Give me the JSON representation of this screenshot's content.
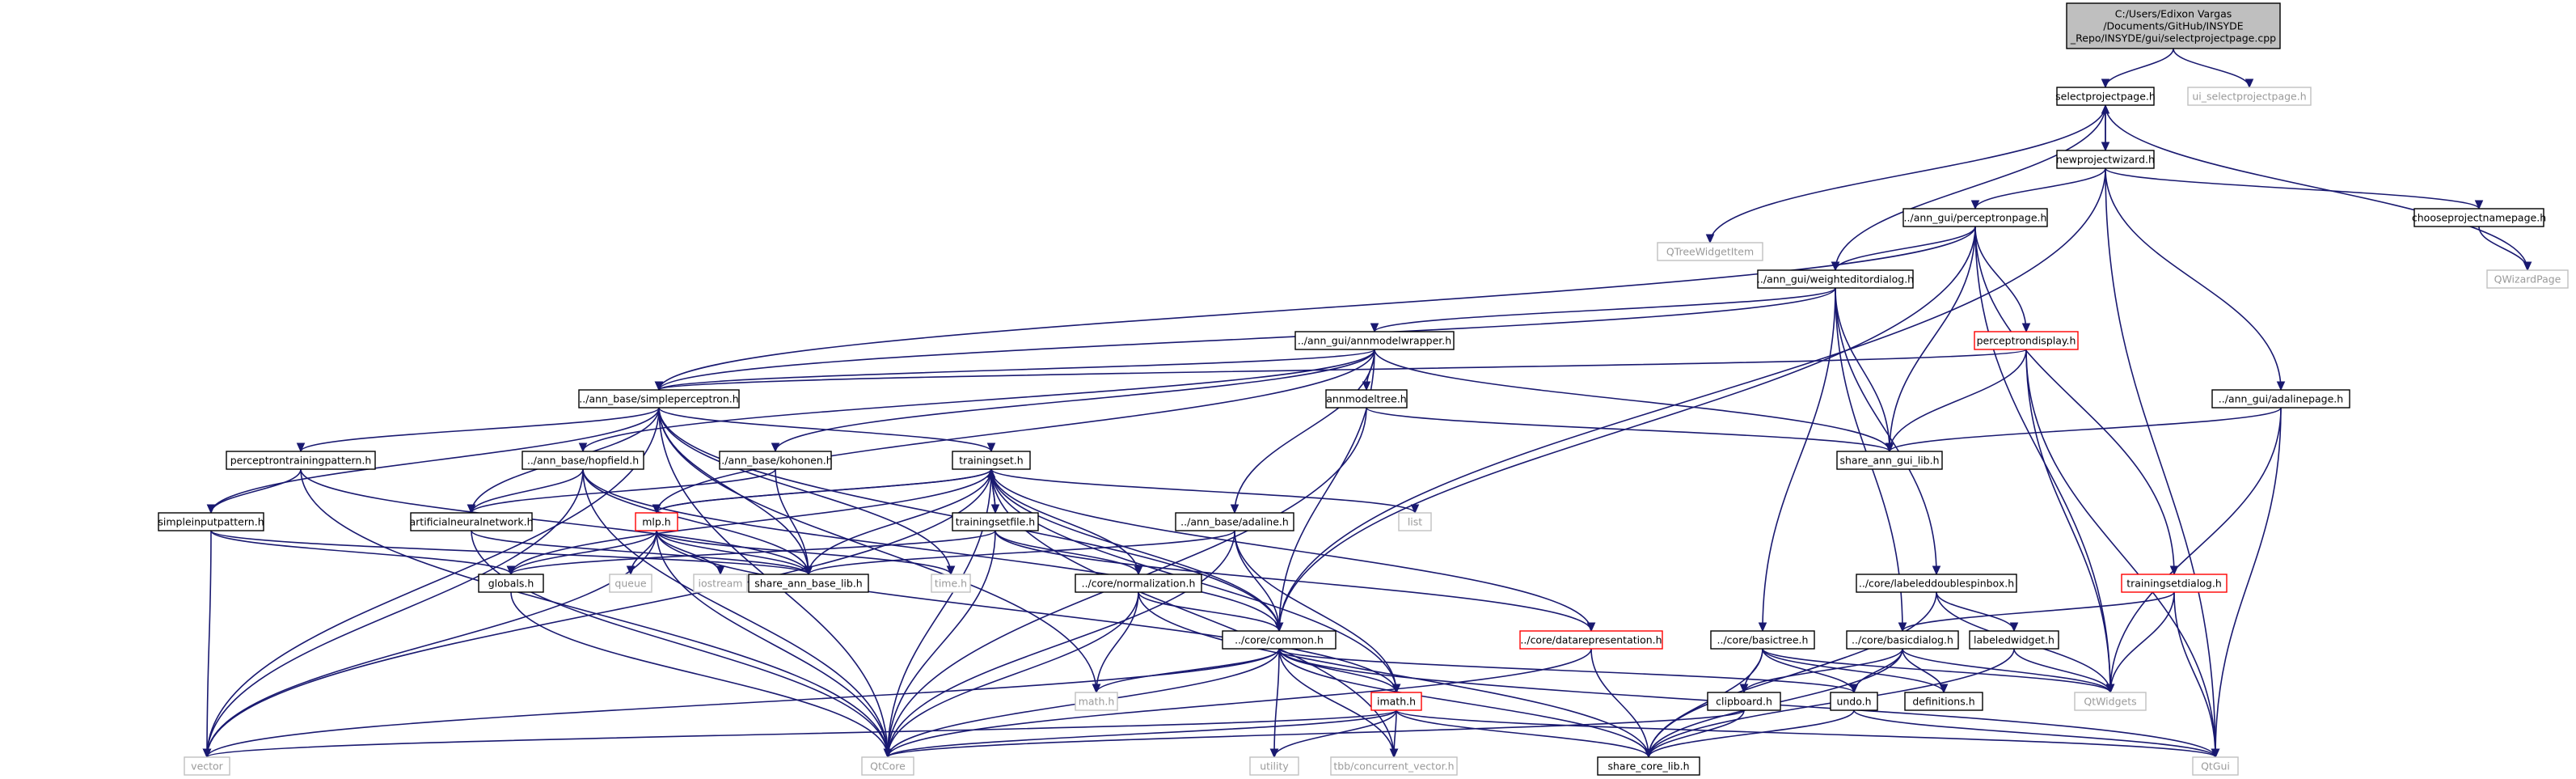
{
  "colors": {
    "edge": "#191970",
    "node_fill": "#ffffff",
    "node_border": "#000000",
    "external_border": "#c0c0c0",
    "truncated_border": "#ff0000",
    "root_fill": "#bfbfbf"
  },
  "nodes": [
    {
      "id": "root",
      "lines": [
        "C:/Users/Edixon Vargas",
        "/Documents/GitHub/INSYDE",
        "_Repo/INSYDE/gui/selectprojectpage.cpp"
      ],
      "kind": "root"
    },
    {
      "id": "selectprojectpage",
      "lines": [
        "selectprojectpage.h"
      ],
      "kind": "local"
    },
    {
      "id": "ui_selectprojectpage",
      "lines": [
        "ui_selectprojectpage.h"
      ],
      "kind": "external"
    },
    {
      "id": "newprojectwizard",
      "lines": [
        "newprojectwizard.h"
      ],
      "kind": "local"
    },
    {
      "id": "qtreewidgetitem",
      "lines": [
        "QTreeWidgetItem"
      ],
      "kind": "external"
    },
    {
      "id": "perceptronpage",
      "lines": [
        "../ann_gui/perceptronpage.h"
      ],
      "kind": "local"
    },
    {
      "id": "chooseprojectnamepage",
      "lines": [
        "chooseprojectnamepage.h"
      ],
      "kind": "local"
    },
    {
      "id": "qwizardpage",
      "lines": [
        "QWizardPage"
      ],
      "kind": "external"
    },
    {
      "id": "weighteditordialog",
      "lines": [
        "../ann_gui/weighteditordialog.h"
      ],
      "kind": "local"
    },
    {
      "id": "annmodelwrapper",
      "lines": [
        "../ann_gui/annmodelwrapper.h"
      ],
      "kind": "local"
    },
    {
      "id": "perceptrondisplay",
      "lines": [
        "perceptrondisplay.h"
      ],
      "kind": "truncated"
    },
    {
      "id": "simpleperceptron",
      "lines": [
        "../ann_base/simpleperceptron.h"
      ],
      "kind": "local"
    },
    {
      "id": "annmodeltree",
      "lines": [
        "annmodeltree.h"
      ],
      "kind": "local"
    },
    {
      "id": "adalinepage",
      "lines": [
        "../ann_gui/adalinepage.h"
      ],
      "kind": "local"
    },
    {
      "id": "perceptrontrainingpattern",
      "lines": [
        "perceptrontrainingpattern.h"
      ],
      "kind": "local"
    },
    {
      "id": "hopfield",
      "lines": [
        "../ann_base/hopfield.h"
      ],
      "kind": "local"
    },
    {
      "id": "kohonen",
      "lines": [
        "../ann_base/kohonen.h"
      ],
      "kind": "local"
    },
    {
      "id": "trainingset",
      "lines": [
        "trainingset.h"
      ],
      "kind": "local"
    },
    {
      "id": "share_ann_gui_lib",
      "lines": [
        "share_ann_gui_lib.h"
      ],
      "kind": "local"
    },
    {
      "id": "simpleinputpattern",
      "lines": [
        "simpleinputpattern.h"
      ],
      "kind": "local"
    },
    {
      "id": "artificialneuralnetwork",
      "lines": [
        "artificialneuralnetwork.h"
      ],
      "kind": "local"
    },
    {
      "id": "mlp",
      "lines": [
        "mlp.h"
      ],
      "kind": "truncated"
    },
    {
      "id": "trainingsetfile",
      "lines": [
        "trainingsetfile.h"
      ],
      "kind": "local"
    },
    {
      "id": "adaline",
      "lines": [
        "../ann_base/adaline.h"
      ],
      "kind": "local"
    },
    {
      "id": "list",
      "lines": [
        "list"
      ],
      "kind": "external"
    },
    {
      "id": "labeleddoublespinbox",
      "lines": [
        "../core/labeleddoublespinbox.h"
      ],
      "kind": "local"
    },
    {
      "id": "trainingsetdialog",
      "lines": [
        "trainingsetdialog.h"
      ],
      "kind": "truncated"
    },
    {
      "id": "globals",
      "lines": [
        "globals.h"
      ],
      "kind": "local"
    },
    {
      "id": "queue",
      "lines": [
        "queue"
      ],
      "kind": "external"
    },
    {
      "id": "iostream",
      "lines": [
        "iostream"
      ],
      "kind": "external"
    },
    {
      "id": "share_ann_base_lib",
      "lines": [
        "share_ann_base_lib.h"
      ],
      "kind": "local"
    },
    {
      "id": "time",
      "lines": [
        "time.h"
      ],
      "kind": "external"
    },
    {
      "id": "normalization",
      "lines": [
        "../core/normalization.h"
      ],
      "kind": "local"
    },
    {
      "id": "datarepresentation",
      "lines": [
        "../core/datarepresentation.h"
      ],
      "kind": "truncated"
    },
    {
      "id": "basictree",
      "lines": [
        "../core/basictree.h"
      ],
      "kind": "local"
    },
    {
      "id": "basicdialog",
      "lines": [
        "../core/basicdialog.h"
      ],
      "kind": "local"
    },
    {
      "id": "labeledwidget",
      "lines": [
        "labeledwidget.h"
      ],
      "kind": "local"
    },
    {
      "id": "common",
      "lines": [
        "../core/common.h"
      ],
      "kind": "local"
    },
    {
      "id": "qtwidgets",
      "lines": [
        "QtWidgets"
      ],
      "kind": "external"
    },
    {
      "id": "definitions",
      "lines": [
        "definitions.h"
      ],
      "kind": "local"
    },
    {
      "id": "imath",
      "lines": [
        "imath.h"
      ],
      "kind": "truncated"
    },
    {
      "id": "math",
      "lines": [
        "math.h"
      ],
      "kind": "external"
    },
    {
      "id": "clipboard",
      "lines": [
        "clipboard.h"
      ],
      "kind": "local"
    },
    {
      "id": "undo",
      "lines": [
        "undo.h"
      ],
      "kind": "local"
    },
    {
      "id": "vector",
      "lines": [
        "vector"
      ],
      "kind": "external"
    },
    {
      "id": "qtcore",
      "lines": [
        "QtCore"
      ],
      "kind": "external"
    },
    {
      "id": "utility",
      "lines": [
        "utility"
      ],
      "kind": "external"
    },
    {
      "id": "tbb_concurrent_vector",
      "lines": [
        "tbb/concurrent_vector.h"
      ],
      "kind": "external"
    },
    {
      "id": "share_core_lib",
      "lines": [
        "share_core_lib.h"
      ],
      "kind": "local"
    },
    {
      "id": "qtgui",
      "lines": [
        "QtGui"
      ],
      "kind": "external"
    }
  ],
  "edges": [
    [
      "root",
      "selectprojectpage"
    ],
    [
      "root",
      "ui_selectprojectpage"
    ],
    [
      "selectprojectpage",
      "newprojectwizard"
    ],
    [
      "selectprojectpage",
      "qtreewidgetitem"
    ],
    [
      "selectprojectpage",
      "weighteditordialog"
    ],
    [
      "selectprojectpage",
      "qwizardpage"
    ],
    [
      "newprojectwizard",
      "selectprojectpage"
    ],
    [
      "newprojectwizard",
      "perceptronpage"
    ],
    [
      "newprojectwizard",
      "chooseprojectnamepage"
    ],
    [
      "newprojectwizard",
      "adalinepage"
    ],
    [
      "newprojectwizard",
      "qtgui"
    ],
    [
      "newprojectwizard",
      "common"
    ],
    [
      "chooseprojectnamepage",
      "qwizardpage"
    ],
    [
      "perceptronpage",
      "weighteditordialog"
    ],
    [
      "perceptronpage",
      "perceptrondisplay"
    ],
    [
      "perceptronpage",
      "trainingsetdialog"
    ],
    [
      "perceptronpage",
      "share_ann_gui_lib"
    ],
    [
      "perceptronpage",
      "qtwidgets"
    ],
    [
      "perceptronpage",
      "simpleperceptron"
    ],
    [
      "perceptronpage",
      "common"
    ],
    [
      "weighteditordialog",
      "annmodelwrapper"
    ],
    [
      "weighteditordialog",
      "share_ann_gui_lib"
    ],
    [
      "weighteditordialog",
      "labeleddoublespinbox"
    ],
    [
      "weighteditordialog",
      "basicdialog"
    ],
    [
      "weighteditordialog",
      "basictree"
    ],
    [
      "weighteditordialog",
      "simpleperceptron"
    ],
    [
      "annmodelwrapper",
      "simpleperceptron"
    ],
    [
      "annmodelwrapper",
      "annmodeltree"
    ],
    [
      "annmodelwrapper",
      "hopfield"
    ],
    [
      "annmodelwrapper",
      "kohonen"
    ],
    [
      "annmodelwrapper",
      "adaline"
    ],
    [
      "annmodelwrapper",
      "mlp"
    ],
    [
      "annmodelwrapper",
      "share_ann_gui_lib"
    ],
    [
      "annmodelwrapper",
      "common"
    ],
    [
      "perceptrondisplay",
      "simpleperceptron"
    ],
    [
      "perceptrondisplay",
      "share_ann_gui_lib"
    ],
    [
      "perceptrondisplay",
      "qtwidgets"
    ],
    [
      "perceptrondisplay",
      "qtgui"
    ],
    [
      "simpleperceptron",
      "perceptrontrainingpattern"
    ],
    [
      "simpleperceptron",
      "trainingset"
    ],
    [
      "simpleperceptron",
      "artificialneuralnetwork"
    ],
    [
      "simpleperceptron",
      "share_ann_base_lib"
    ],
    [
      "simpleperceptron",
      "simpleinputpattern"
    ],
    [
      "simpleperceptron",
      "vector"
    ],
    [
      "simpleperceptron",
      "qtcore"
    ],
    [
      "simpleperceptron",
      "math"
    ],
    [
      "simpleperceptron",
      "time"
    ],
    [
      "simpleperceptron",
      "common"
    ],
    [
      "annmodeltree",
      "share_ann_gui_lib"
    ],
    [
      "annmodeltree",
      "qtcore"
    ],
    [
      "adalinepage",
      "share_ann_gui_lib"
    ],
    [
      "adalinepage",
      "qtwidgets"
    ],
    [
      "adalinepage",
      "qtgui"
    ],
    [
      "perceptrontrainingpattern",
      "simpleinputpattern"
    ],
    [
      "perceptrontrainingpattern",
      "share_ann_base_lib"
    ],
    [
      "perceptrontrainingpattern",
      "qtcore"
    ],
    [
      "hopfield",
      "artificialneuralnetwork"
    ],
    [
      "hopfield",
      "share_ann_base_lib"
    ],
    [
      "hopfield",
      "vector"
    ],
    [
      "hopfield",
      "qtcore"
    ],
    [
      "hopfield",
      "common"
    ],
    [
      "kohonen",
      "artificialneuralnetwork"
    ],
    [
      "kohonen",
      "share_ann_base_lib"
    ],
    [
      "trainingset",
      "mlp"
    ],
    [
      "trainingset",
      "trainingsetfile"
    ],
    [
      "trainingset",
      "globals"
    ],
    [
      "trainingset",
      "share_ann_base_lib"
    ],
    [
      "trainingset",
      "normalization"
    ],
    [
      "trainingset",
      "datarepresentation"
    ],
    [
      "trainingset",
      "list"
    ],
    [
      "trainingset",
      "vector"
    ],
    [
      "trainingset",
      "qtcore"
    ],
    [
      "trainingset",
      "common"
    ],
    [
      "trainingset",
      "imath"
    ],
    [
      "trainingset",
      "tbb_concurrent_vector"
    ],
    [
      "simpleinputpattern",
      "globals"
    ],
    [
      "simpleinputpattern",
      "share_ann_base_lib"
    ],
    [
      "simpleinputpattern",
      "vector"
    ],
    [
      "artificialneuralnetwork",
      "share_ann_base_lib"
    ],
    [
      "artificialneuralnetwork",
      "qtcore"
    ],
    [
      "mlp",
      "trainingset"
    ],
    [
      "mlp",
      "globals"
    ],
    [
      "mlp",
      "queue"
    ],
    [
      "mlp",
      "iostream"
    ],
    [
      "mlp",
      "share_ann_base_lib"
    ],
    [
      "mlp",
      "time"
    ],
    [
      "mlp",
      "vector"
    ],
    [
      "mlp",
      "qtcore"
    ],
    [
      "mlp",
      "imath"
    ],
    [
      "trainingsetfile",
      "trainingset"
    ],
    [
      "trainingsetfile",
      "globals"
    ],
    [
      "trainingsetfile",
      "normalization"
    ],
    [
      "trainingsetfile",
      "datarepresentation"
    ],
    [
      "trainingsetfile",
      "qtcore"
    ],
    [
      "adaline",
      "share_ann_base_lib"
    ],
    [
      "adaline",
      "common"
    ],
    [
      "adaline",
      "imath"
    ],
    [
      "adaline",
      "qtcore"
    ],
    [
      "labeleddoublespinbox",
      "labeledwidget"
    ],
    [
      "labeleddoublespinbox",
      "share_core_lib"
    ],
    [
      "labeleddoublespinbox",
      "qtwidgets"
    ],
    [
      "trainingsetdialog",
      "basicdialog"
    ],
    [
      "trainingsetdialog",
      "qtgui"
    ],
    [
      "trainingsetdialog",
      "qtwidgets"
    ],
    [
      "globals",
      "qtcore"
    ],
    [
      "normalization",
      "common"
    ],
    [
      "normalization",
      "math"
    ],
    [
      "normalization",
      "qtcore"
    ],
    [
      "normalization",
      "share_core_lib"
    ],
    [
      "datarepresentation",
      "share_core_lib"
    ],
    [
      "datarepresentation",
      "qtcore"
    ],
    [
      "basictree",
      "clipboard"
    ],
    [
      "basictree",
      "undo"
    ],
    [
      "basictree",
      "definitions"
    ],
    [
      "basictree",
      "share_core_lib"
    ],
    [
      "basictree",
      "qtwidgets"
    ],
    [
      "basicdialog",
      "clipboard"
    ],
    [
      "basicdialog",
      "undo"
    ],
    [
      "basicdialog",
      "definitions"
    ],
    [
      "basicdialog",
      "share_core_lib"
    ],
    [
      "basicdialog",
      "qtwidgets"
    ],
    [
      "labeledwidget",
      "qtwidgets"
    ],
    [
      "labeledwidget",
      "share_core_lib"
    ],
    [
      "common",
      "imath"
    ],
    [
      "common",
      "math"
    ],
    [
      "common",
      "vector"
    ],
    [
      "common",
      "qtcore"
    ],
    [
      "common",
      "utility"
    ],
    [
      "common",
      "tbb_concurrent_vector"
    ],
    [
      "common",
      "share_core_lib"
    ],
    [
      "common",
      "qtgui"
    ],
    [
      "common",
      "undo"
    ],
    [
      "imath",
      "vector"
    ],
    [
      "imath",
      "qtcore"
    ],
    [
      "imath",
      "utility"
    ],
    [
      "imath",
      "tbb_concurrent_vector"
    ],
    [
      "imath",
      "share_core_lib"
    ],
    [
      "imath",
      "qtgui"
    ],
    [
      "clipboard",
      "share_core_lib"
    ],
    [
      "clipboard",
      "qtcore"
    ],
    [
      "undo",
      "share_core_lib"
    ],
    [
      "undo",
      "qtgui"
    ]
  ]
}
